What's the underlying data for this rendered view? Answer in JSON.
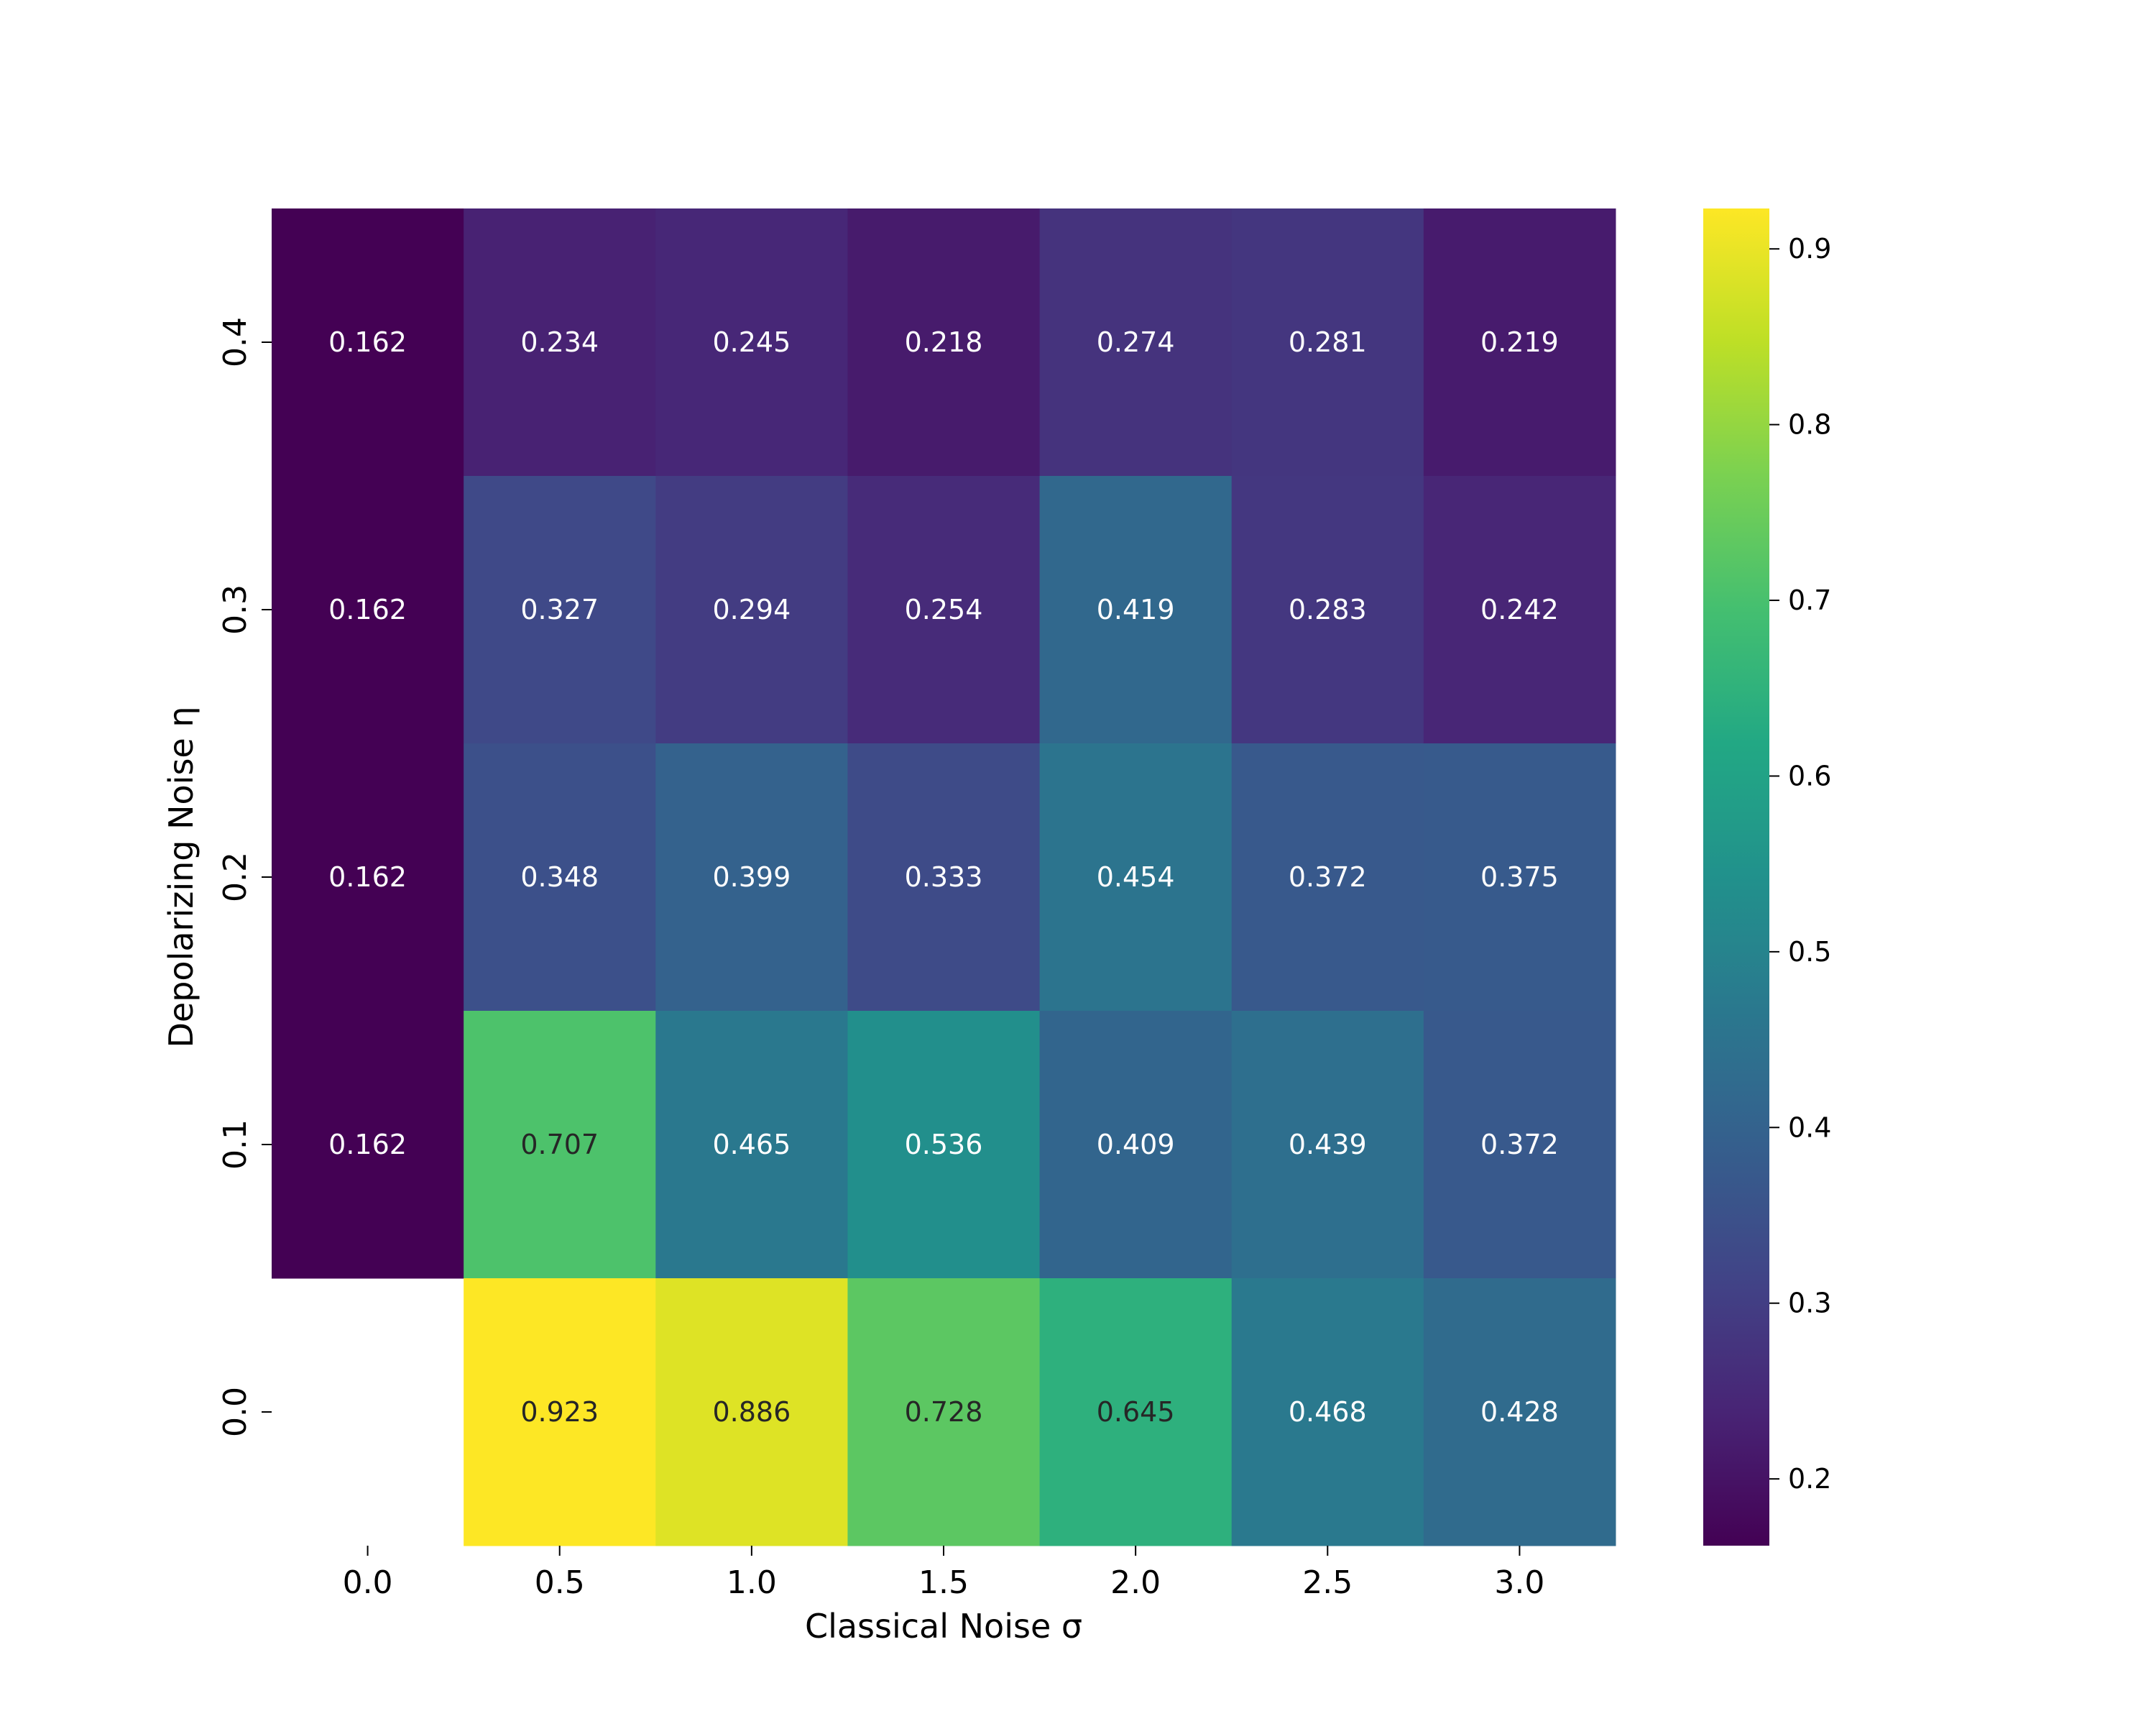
{
  "chart_data": {
    "type": "heatmap",
    "title": "",
    "xlabel": "Classical Noise σ",
    "ylabel": "Depolarizing Noise η",
    "x_categories": [
      "0.0",
      "0.5",
      "1.0",
      "1.5",
      "2.0",
      "2.5",
      "3.0"
    ],
    "y_categories": [
      "0.4",
      "0.3",
      "0.2",
      "0.1",
      "0.0"
    ],
    "values": [
      [
        0.162,
        0.234,
        0.245,
        0.218,
        0.274,
        0.281,
        0.219
      ],
      [
        0.162,
        0.327,
        0.294,
        0.254,
        0.419,
        0.283,
        0.242
      ],
      [
        0.162,
        0.348,
        0.399,
        0.333,
        0.454,
        0.372,
        0.375
      ],
      [
        0.162,
        0.707,
        0.465,
        0.536,
        0.409,
        0.439,
        0.372
      ],
      [
        null,
        0.923,
        0.886,
        0.728,
        0.645,
        0.468,
        0.428
      ]
    ],
    "value_format": "3 decimals",
    "colormap": "viridis",
    "vmin": 0.162,
    "vmax": 0.923,
    "colorbar": {
      "ticks": [
        0.2,
        0.3,
        0.4,
        0.5,
        0.6,
        0.7,
        0.8,
        0.9
      ],
      "tick_labels": [
        "0.2",
        "0.3",
        "0.4",
        "0.5",
        "0.6",
        "0.7",
        "0.8",
        "0.9"
      ],
      "placement": "right"
    },
    "annotation_text_colors": {
      "light": "#ffffff",
      "dark": "#262626"
    }
  }
}
